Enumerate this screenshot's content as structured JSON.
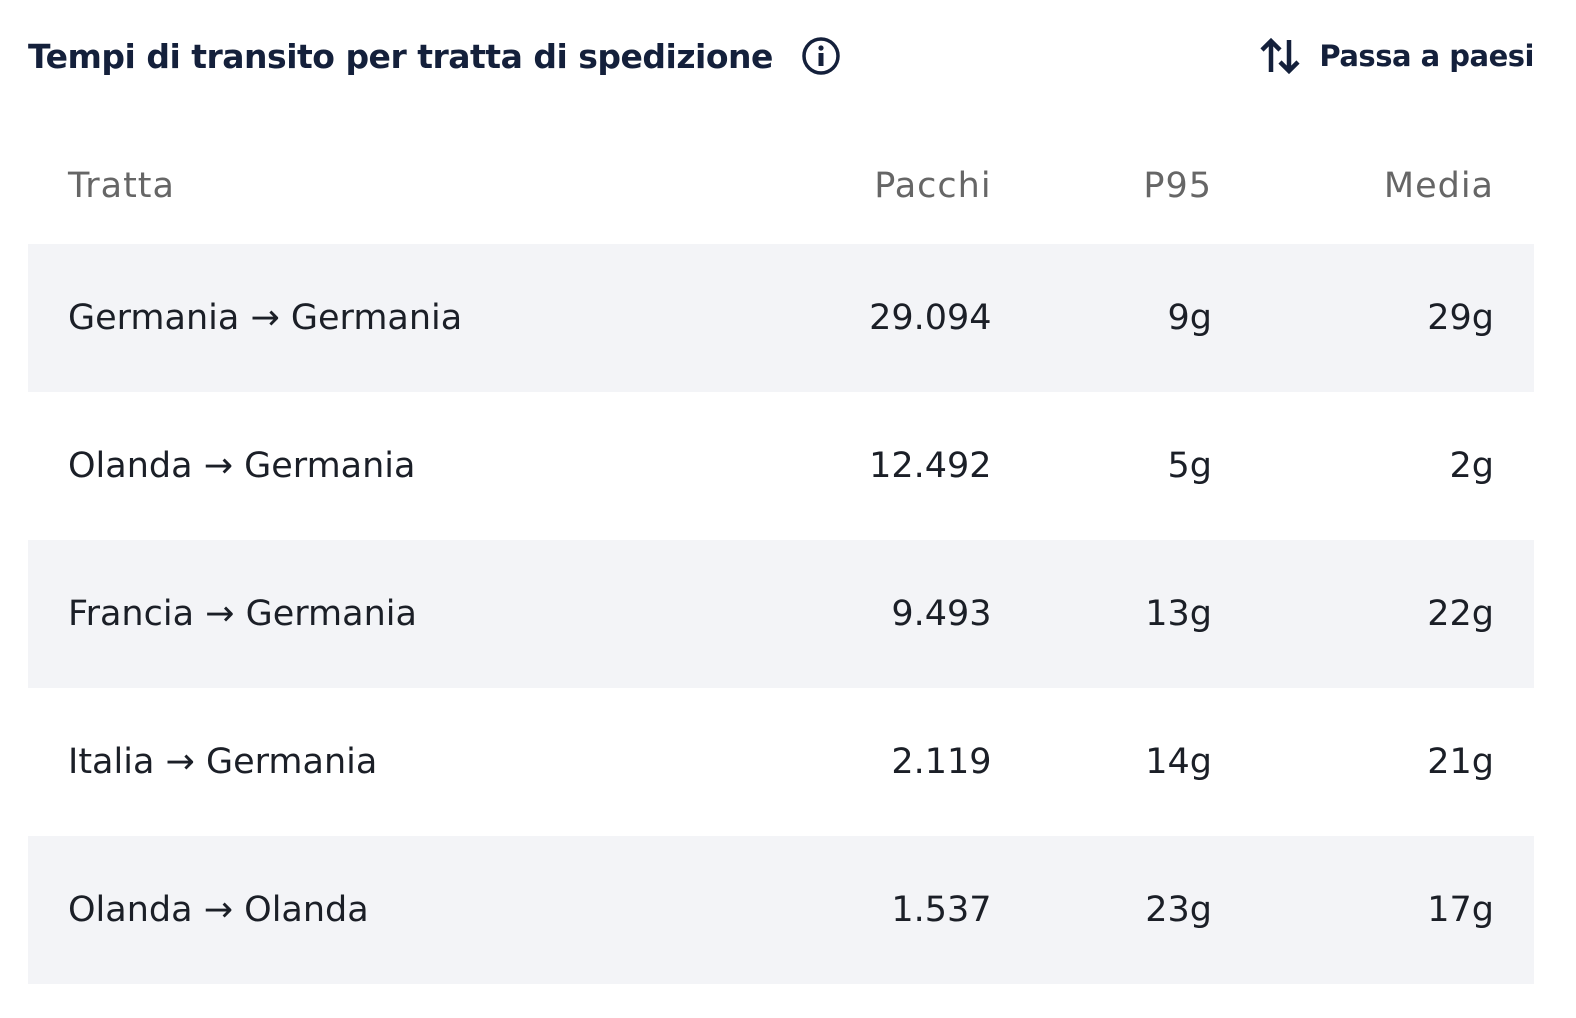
{
  "header": {
    "title": "Tempi di transito per tratta di spedizione",
    "toggle": "Passa a paesi"
  },
  "table": {
    "columns": [
      "Tratta",
      "Pacchi",
      "P95",
      "Media"
    ],
    "rows": [
      [
        "Germania → Germania",
        "29.094",
        "9g",
        "29g"
      ],
      [
        "Olanda → Germania",
        "12.492",
        "5g",
        "2g"
      ],
      [
        "Francia → Germania",
        "9.493",
        "13g",
        "22g"
      ],
      [
        "Italia → Germania",
        "2.119",
        "14g",
        "21g"
      ],
      [
        "Olanda → Olanda",
        "1.537",
        "23g",
        "17g"
      ]
    ]
  }
}
